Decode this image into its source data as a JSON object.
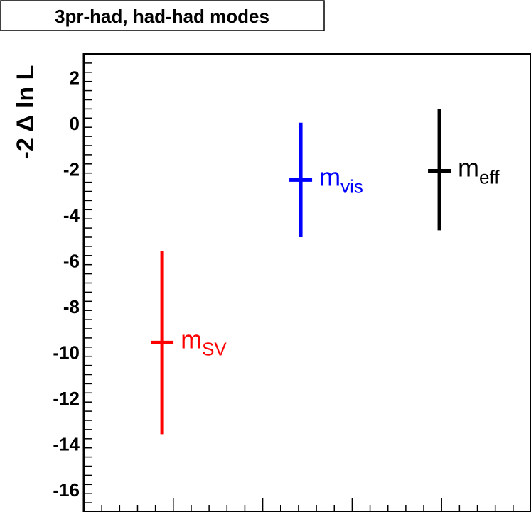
{
  "chart_data": {
    "type": "scatter",
    "title": "3pr-had, had-had modes",
    "ylabel": "-2 Δ ln L",
    "xlabel": "",
    "ylim": [
      -17,
      3
    ],
    "y_ticks": [
      "2",
      "0",
      "-2",
      "-4",
      "-6",
      "-8",
      "-10",
      "-12",
      "-14",
      "-16"
    ],
    "series": [
      {
        "name_base": "m",
        "name_sub": "SV",
        "value": -9.6,
        "err_low": -13.6,
        "err_high": -5.6,
        "color": "#ff0000"
      },
      {
        "name_base": "m",
        "name_sub": "vis",
        "value": -2.5,
        "err_low": -5.0,
        "err_high": 0.0,
        "color": "#0000ff"
      },
      {
        "name_base": "m",
        "name_sub": "eff",
        "value": -2.1,
        "err_low": -4.7,
        "err_high": 0.6,
        "color": "#000000"
      }
    ]
  }
}
